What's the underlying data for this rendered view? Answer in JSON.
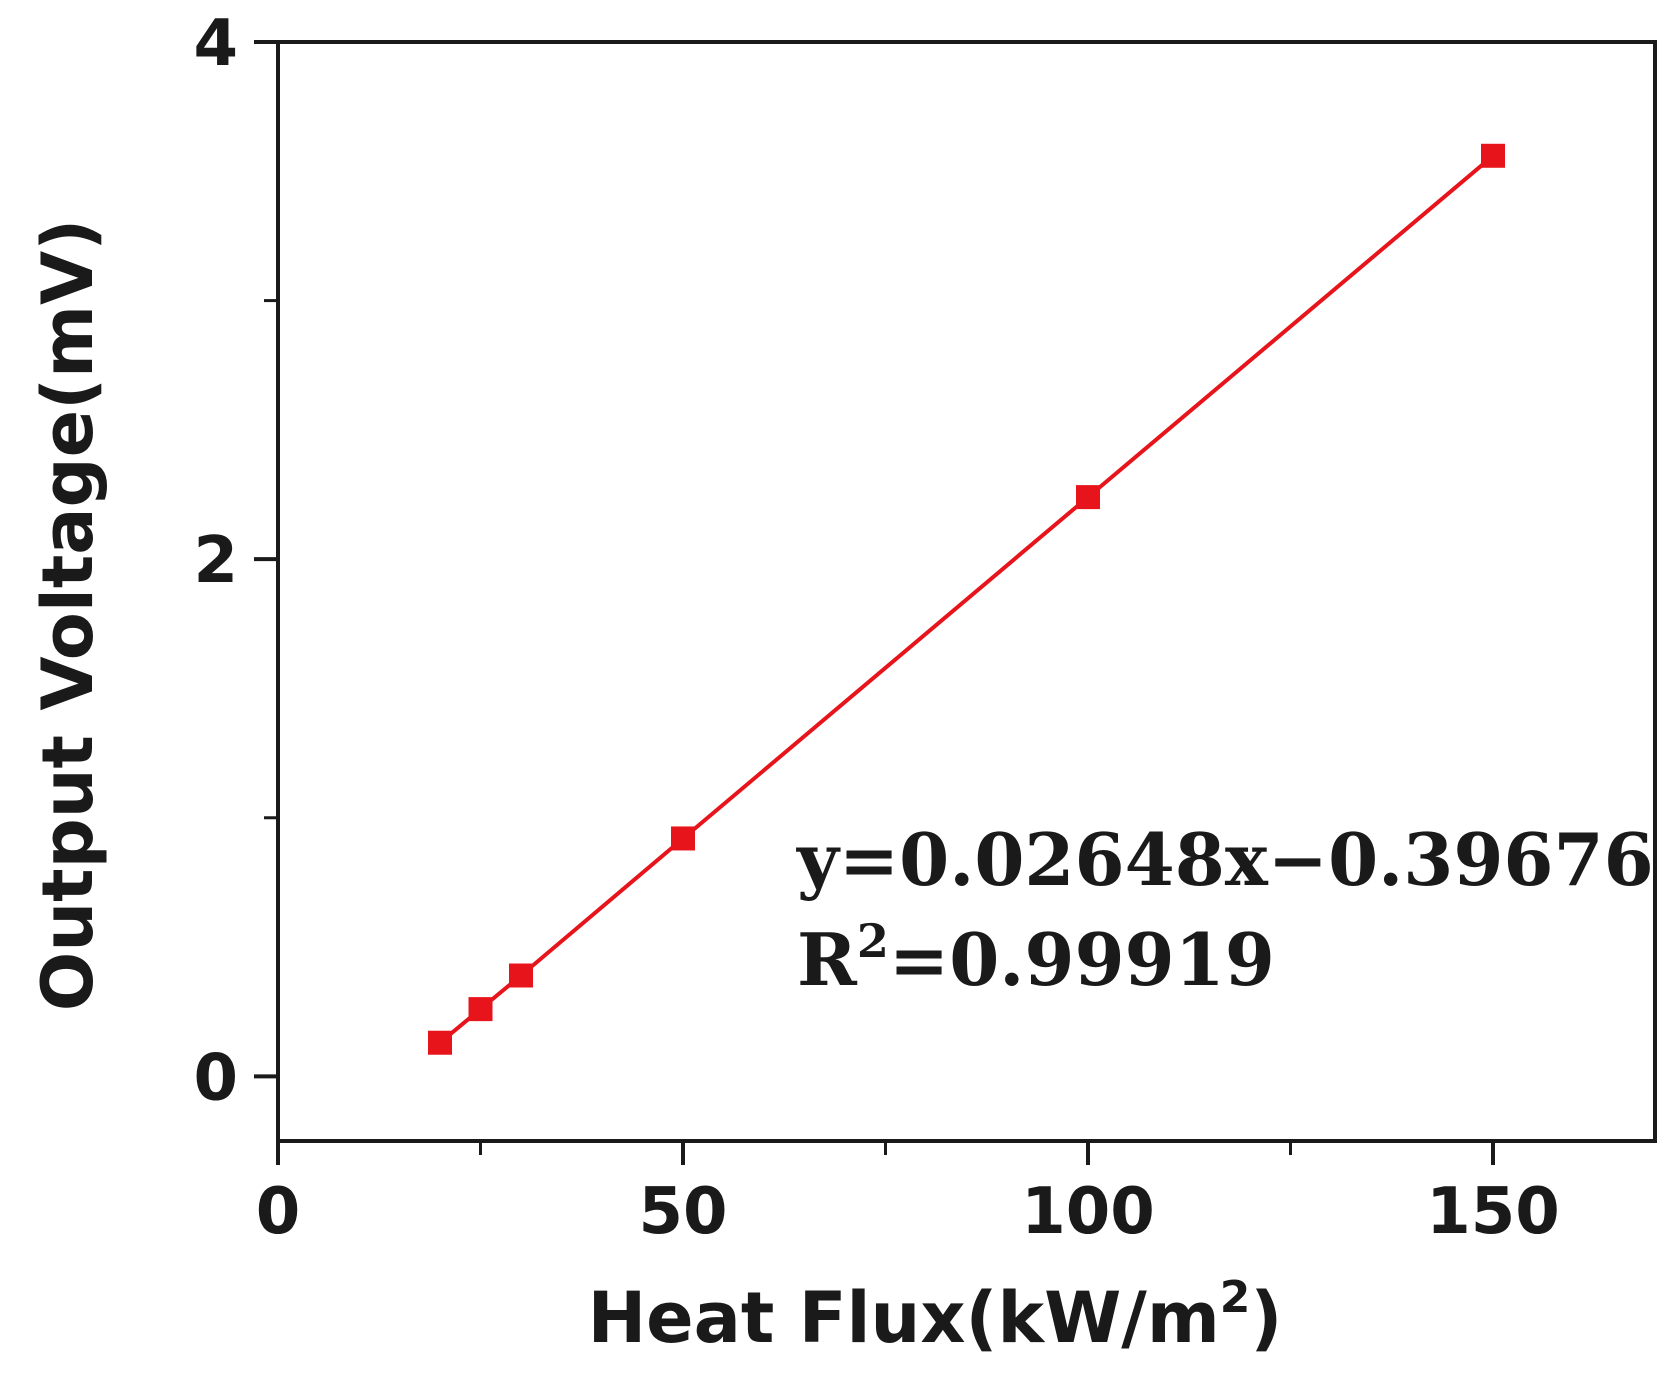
{
  "chart_data": {
    "type": "line",
    "title": "",
    "xlabel": "Heat Flux(kW/m",
    "xlabel_superscript": "2",
    "xlabel_suffix": ")",
    "ylabel": "Output Voltage(mV)",
    "xlim": [
      0,
      170
    ],
    "ylim": [
      -0.25,
      4.0
    ],
    "x_ticks": [
      0,
      50,
      100,
      150
    ],
    "x_tick_labels": [
      "0",
      "50",
      "100",
      "150"
    ],
    "x_minor_ticks": [
      25,
      75,
      125
    ],
    "y_ticks": [
      0,
      2,
      4
    ],
    "y_tick_labels": [
      "0",
      "2",
      "4"
    ],
    "y_minor_ticks": [
      1,
      3
    ],
    "grid": false,
    "legend": "none",
    "series": [
      {
        "x": [
          20,
          25,
          30,
          50,
          100,
          150
        ],
        "y": [
          0.13,
          0.26,
          0.39,
          0.92,
          2.24,
          3.56
        ],
        "color": "#e8141c",
        "marker": "square"
      }
    ],
    "annotations": {
      "equation": "y=0.02648x−0.39676",
      "r2_prefix": "R",
      "r2_superscript": "2",
      "r2_value": "=0.99919"
    }
  }
}
